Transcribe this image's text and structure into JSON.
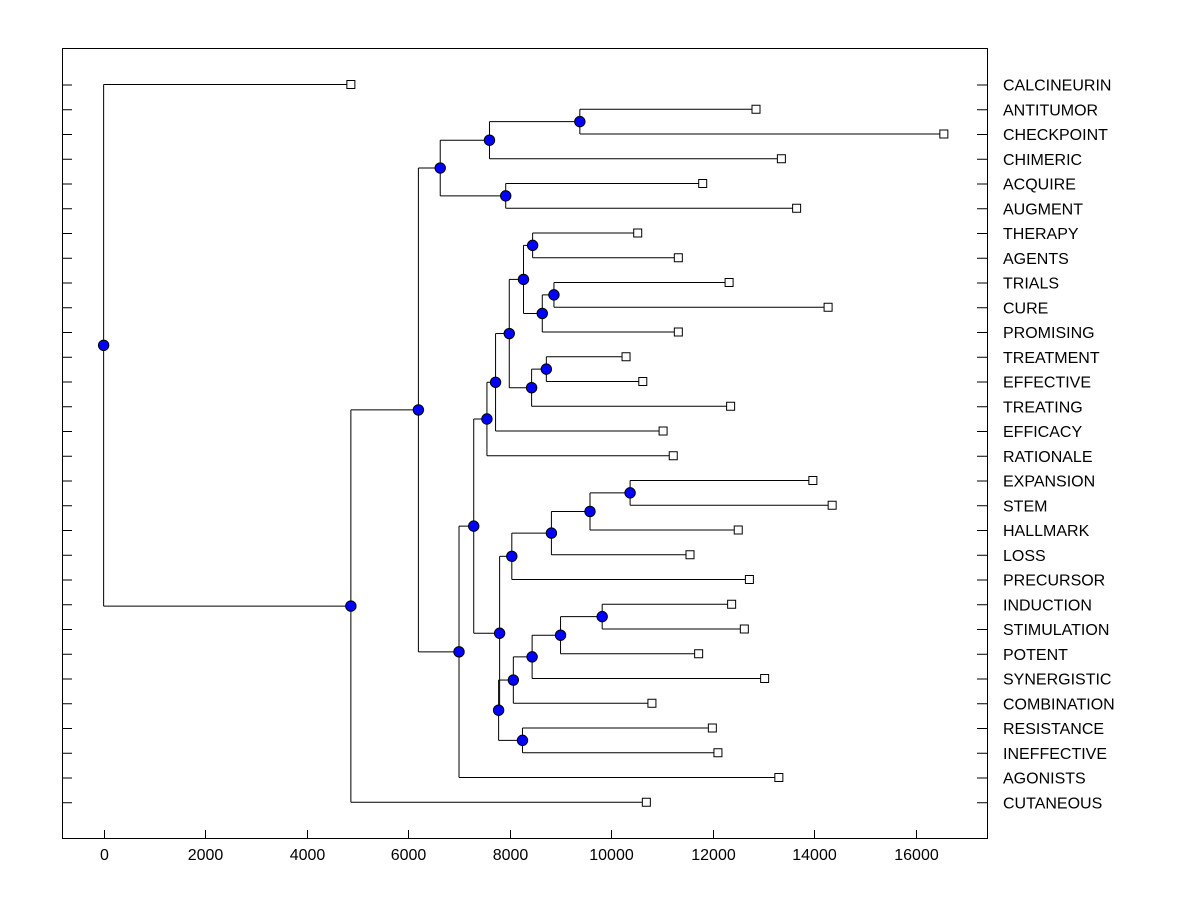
{
  "chart_data": {
    "type": "dendrogram",
    "title": "",
    "xlabel": "",
    "ylabel": "",
    "xlim": [
      -820,
      17400
    ],
    "xticks": [
      0,
      2000,
      4000,
      6000,
      8000,
      10000,
      12000,
      14000,
      16000
    ],
    "xtick_labels": [
      "0",
      "2000",
      "4000",
      "6000",
      "8000",
      "10000",
      "12000",
      "14000",
      "16000"
    ],
    "node_color": "#0000ff",
    "leaves": [
      {
        "label": "CALCINEURIN",
        "x": 4870
      },
      {
        "label": "ANTITUMOR",
        "x": 12850
      },
      {
        "label": "CHECKPOINT",
        "x": 16550
      },
      {
        "label": "CHIMERIC",
        "x": 13350
      },
      {
        "label": "ACQUIRE",
        "x": 11800
      },
      {
        "label": "AUGMENT",
        "x": 13650
      },
      {
        "label": "THERAPY",
        "x": 10520
      },
      {
        "label": "AGENTS",
        "x": 11320
      },
      {
        "label": "TRIALS",
        "x": 12320
      },
      {
        "label": "CURE",
        "x": 14270
      },
      {
        "label": "PROMISING",
        "x": 11320
      },
      {
        "label": "TREATMENT",
        "x": 10290
      },
      {
        "label": "EFFECTIVE",
        "x": 10620
      },
      {
        "label": "TREATING",
        "x": 12350
      },
      {
        "label": "EFFICACY",
        "x": 11020
      },
      {
        "label": "RATIONALE",
        "x": 11220
      },
      {
        "label": "EXPANSION",
        "x": 13970
      },
      {
        "label": "STEM",
        "x": 14350
      },
      {
        "label": "HALLMARK",
        "x": 12500
      },
      {
        "label": "LOSS",
        "x": 11550
      },
      {
        "label": "PRECURSOR",
        "x": 12720
      },
      {
        "label": "INDUCTION",
        "x": 12370
      },
      {
        "label": "STIMULATION",
        "x": 12620
      },
      {
        "label": "POTENT",
        "x": 11720
      },
      {
        "label": "SYNERGISTIC",
        "x": 13020
      },
      {
        "label": "COMBINATION",
        "x": 10800
      },
      {
        "label": "RESISTANCE",
        "x": 11990
      },
      {
        "label": "INEFFECTIVE",
        "x": 12100
      },
      {
        "label": "AGONISTS",
        "x": 13300
      },
      {
        "label": "CUTANEOUS",
        "x": 10690
      }
    ],
    "merges": [
      {
        "id": "n1",
        "x": 9380,
        "children": [
          "L1",
          "L2"
        ]
      },
      {
        "id": "n2",
        "x": 7600,
        "children": [
          "n1",
          "L3"
        ]
      },
      {
        "id": "n3",
        "x": 7920,
        "children": [
          "L4",
          "L5"
        ]
      },
      {
        "id": "n4",
        "x": 6630,
        "children": [
          "n2",
          "n3"
        ]
      },
      {
        "id": "n5",
        "x": 8450,
        "children": [
          "L6",
          "L7"
        ]
      },
      {
        "id": "n6",
        "x": 8870,
        "children": [
          "L8",
          "L9"
        ]
      },
      {
        "id": "n7",
        "x": 8640,
        "children": [
          "n6",
          "L10"
        ]
      },
      {
        "id": "n8",
        "x": 8270,
        "children": [
          "n5",
          "n7"
        ]
      },
      {
        "id": "n9",
        "x": 8720,
        "children": [
          "L11",
          "L12"
        ]
      },
      {
        "id": "n10",
        "x": 8430,
        "children": [
          "n9",
          "L13"
        ]
      },
      {
        "id": "n11",
        "x": 7990,
        "children": [
          "n8",
          "n10"
        ]
      },
      {
        "id": "n12",
        "x": 7720,
        "children": [
          "n11",
          "L14"
        ]
      },
      {
        "id": "n13",
        "x": 7550,
        "children": [
          "n12",
          "L15"
        ]
      },
      {
        "id": "n14",
        "x": 10370,
        "children": [
          "L16",
          "L17"
        ]
      },
      {
        "id": "n15",
        "x": 9580,
        "children": [
          "n14",
          "L18"
        ]
      },
      {
        "id": "n16",
        "x": 8820,
        "children": [
          "n15",
          "L19"
        ]
      },
      {
        "id": "n17",
        "x": 8040,
        "children": [
          "n16",
          "L20"
        ]
      },
      {
        "id": "n18",
        "x": 9820,
        "children": [
          "L21",
          "L22"
        ]
      },
      {
        "id": "n19",
        "x": 9000,
        "children": [
          "n18",
          "L23"
        ]
      },
      {
        "id": "n20",
        "x": 8440,
        "children": [
          "n19",
          "L24"
        ]
      },
      {
        "id": "n21",
        "x": 8070,
        "children": [
          "n20",
          "L25"
        ]
      },
      {
        "id": "n22",
        "x": 8250,
        "children": [
          "L26",
          "L27"
        ]
      },
      {
        "id": "n23",
        "x": 7780,
        "children": [
          "n21",
          "n22"
        ]
      },
      {
        "id": "n24",
        "x": 7800,
        "children": [
          "n17",
          "n23"
        ]
      },
      {
        "id": "n25",
        "x": 7290,
        "children": [
          "n13",
          "n24"
        ]
      },
      {
        "id": "n26",
        "x": 7000,
        "children": [
          "n25",
          "L28"
        ]
      },
      {
        "id": "n27",
        "x": 6200,
        "children": [
          "n4",
          "n26"
        ]
      },
      {
        "id": "n28",
        "x": 4870,
        "children": [
          "n27",
          "L29"
        ]
      },
      {
        "id": "n29",
        "x": 0,
        "children": [
          "L0",
          "n28"
        ]
      }
    ]
  }
}
